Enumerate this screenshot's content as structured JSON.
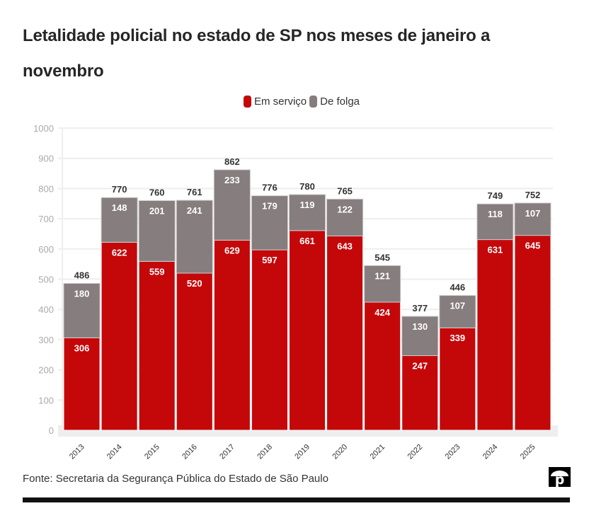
{
  "header": {
    "title": "Letalidade policial no estado de SP nos meses de janeiro a novembro"
  },
  "colors": {
    "em_servico": "#c4080a",
    "de_folga": "#857d7e",
    "grid": "#eeeeee",
    "axis_band": "#eeeeee"
  },
  "legend": {
    "items": [
      {
        "label": "Em serviço",
        "color": "#c4080a"
      },
      {
        "label": "De folga",
        "color": "#857d7e"
      }
    ]
  },
  "chart_data": {
    "type": "bar",
    "stacked": true,
    "title": "Letalidade policial no estado de SP nos meses de janeiro a novembro",
    "xlabel": "",
    "ylabel": "",
    "ylim": [
      0,
      1000
    ],
    "yticks": [
      0,
      100,
      200,
      300,
      400,
      500,
      600,
      700,
      800,
      900,
      1000
    ],
    "grid": true,
    "legend_position": "top-center",
    "categories": [
      "2013",
      "2014",
      "2015",
      "2016",
      "2017",
      "2018",
      "2019",
      "2020",
      "2021",
      "2022",
      "2023",
      "2024",
      "2025"
    ],
    "series": [
      {
        "name": "Em serviço",
        "color": "#c4080a",
        "values": [
          306,
          622,
          559,
          520,
          629,
          597,
          661,
          643,
          424,
          247,
          339,
          631,
          645
        ]
      },
      {
        "name": "De folga",
        "color": "#857d7e",
        "values": [
          180,
          148,
          201,
          241,
          233,
          179,
          119,
          122,
          121,
          130,
          107,
          118,
          107
        ]
      }
    ],
    "totals": [
      486,
      770,
      760,
      761,
      862,
      776,
      780,
      765,
      545,
      377,
      446,
      749,
      752
    ]
  },
  "footer": {
    "source": "Fonte: Secretaria da Segurança Pública do Estado de São Paulo",
    "logo_letter": "p"
  }
}
